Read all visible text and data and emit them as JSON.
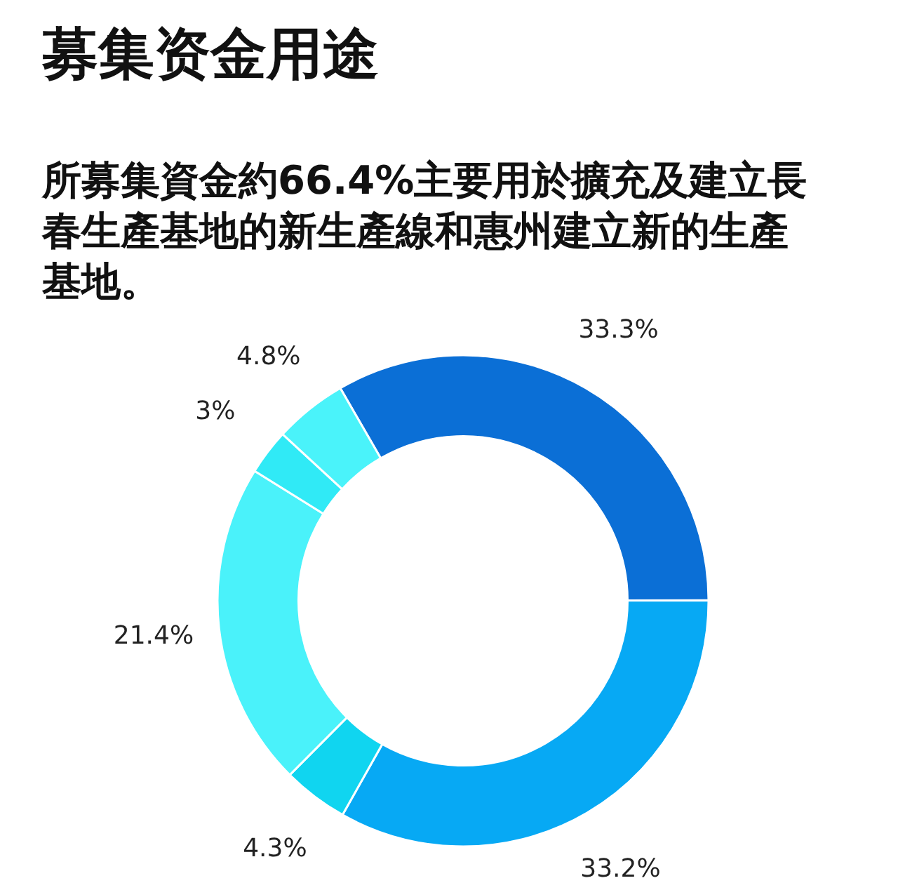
{
  "chart_data": {
    "type": "donut",
    "title": "募集资金用途",
    "subtitle": "所募集資金約66.4%主要用於擴充及建立長春生產基地的新生產線和惠州建立新的生產基地。",
    "categories": [
      null,
      null,
      null,
      null,
      null,
      null
    ],
    "values": [
      33.3,
      33.2,
      4.3,
      21.4,
      3,
      4.8
    ],
    "colors": [
      "#0b6fd6",
      "#07a9f4",
      "#10d5f0",
      "#4af2fa",
      "#30eaf6",
      "#4af3fa"
    ],
    "value_labels": [
      "33.3%",
      "33.2%",
      "4.3%",
      "21.4%",
      "3%",
      "4.8%"
    ]
  }
}
